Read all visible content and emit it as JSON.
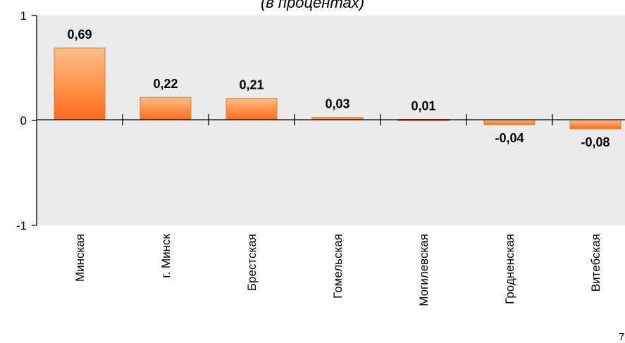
{
  "chart_data": {
    "type": "bar",
    "subtitle": "(в процентах)",
    "categories": [
      "Минская",
      "г. Минск",
      "Брестская",
      "Гомельская",
      "Могилевская",
      "Гродненская",
      "Витебская"
    ],
    "values": [
      0.69,
      0.22,
      0.21,
      0.03,
      0.01,
      -0.04,
      -0.08
    ],
    "value_labels": [
      "0,69",
      "0,22",
      "0,21",
      "0,03",
      "0,01",
      "-0,04",
      "-0,08"
    ],
    "ylim": [
      -1,
      1
    ],
    "yticks": [
      1,
      0,
      -1
    ],
    "ytick_labels": [
      "1",
      "0",
      "-1"
    ],
    "plot_background": "#ebebeb",
    "bar_color_top": "#ffc08a",
    "bar_color_bottom": "#ff6a1a",
    "bar_stroke": "#e8782c",
    "grid": false,
    "legend": "none"
  },
  "corner_mark": "7"
}
